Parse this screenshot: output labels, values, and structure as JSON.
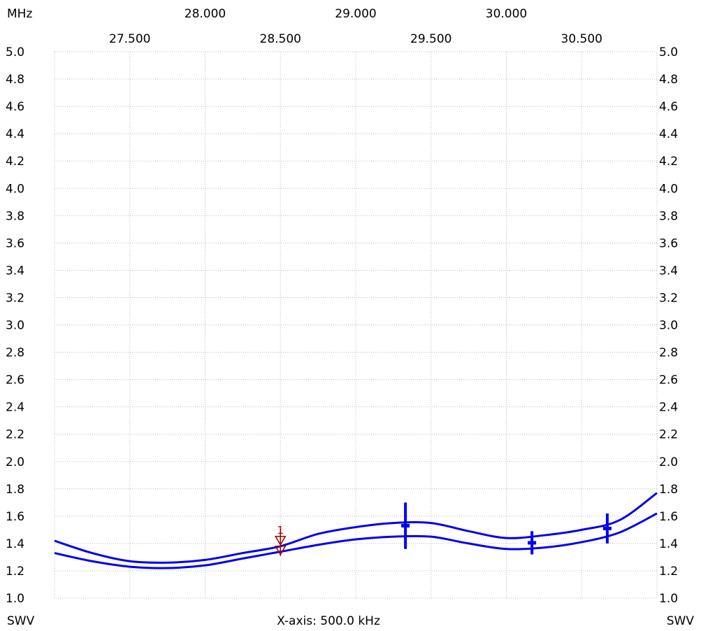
{
  "chart_data": {
    "type": "line",
    "unit_label": "MHz",
    "y_label_left": "SWV",
    "y_label_right": "SWV",
    "x_axis_caption": "X-axis: 500.0 kHz",
    "xlim": [
      27.0,
      31.0
    ],
    "ylim": [
      1.0,
      5.0
    ],
    "x_ticks_upper": [
      "28.000",
      "29.000",
      "30.000"
    ],
    "x_ticks_lower": [
      "27.500",
      "28.500",
      "29.500",
      "30.500"
    ],
    "y_ticks": [
      "5.0",
      "4.8",
      "4.6",
      "4.4",
      "4.2",
      "4.0",
      "3.8",
      "3.6",
      "3.4",
      "3.2",
      "3.0",
      "2.8",
      "2.6",
      "2.4",
      "2.2",
      "2.0",
      "1.8",
      "1.6",
      "1.4",
      "1.2",
      "1.0"
    ],
    "grid": true,
    "series": [
      {
        "color": "#0000ee",
        "x": [
          27.0,
          27.25,
          27.5,
          27.75,
          28.0,
          28.25,
          28.5,
          28.75,
          29.0,
          29.25,
          29.5,
          29.75,
          30.0,
          30.25,
          30.5,
          30.75,
          31.0
        ],
        "y": [
          1.42,
          1.33,
          1.27,
          1.26,
          1.28,
          1.33,
          1.38,
          1.47,
          1.52,
          1.55,
          1.55,
          1.49,
          1.44,
          1.46,
          1.5,
          1.57,
          1.77
        ]
      },
      {
        "color": "#0000ee",
        "x": [
          27.0,
          27.25,
          27.5,
          27.75,
          28.0,
          28.25,
          28.5,
          28.75,
          29.0,
          29.25,
          29.5,
          29.75,
          30.0,
          30.25,
          30.5,
          30.75,
          31.0
        ],
        "y": [
          1.33,
          1.27,
          1.23,
          1.22,
          1.24,
          1.29,
          1.34,
          1.39,
          1.43,
          1.45,
          1.45,
          1.4,
          1.36,
          1.37,
          1.41,
          1.48,
          1.62
        ]
      }
    ],
    "spikes": [
      {
        "x": 29.33,
        "y1": 1.36,
        "y2": 1.7
      },
      {
        "x": 30.17,
        "y1": 1.32,
        "y2": 1.49
      },
      {
        "x": 30.67,
        "y1": 1.4,
        "y2": 1.62
      }
    ],
    "marker": {
      "label": "1",
      "x": 28.5,
      "y": 1.38,
      "color": "#a00000"
    }
  }
}
